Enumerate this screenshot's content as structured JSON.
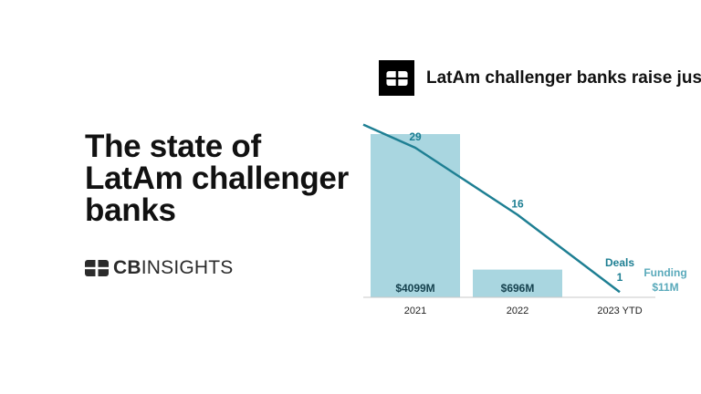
{
  "headline": {
    "lines": [
      "The state of",
      "LatAm challenger",
      "banks"
    ]
  },
  "brand": {
    "bold": "CB",
    "regular": "INSIGHTS",
    "icon": "cb-insights-logo-icon"
  },
  "chart_data": {
    "type": "bar+line",
    "title": "LatAm challenger banks raise just",
    "categories": [
      "2021",
      "2022",
      "2023 YTD"
    ],
    "series": [
      {
        "name": "Funding",
        "type": "bar",
        "color": "#a9d6e0",
        "values": [
          4099,
          696,
          11
        ],
        "labels": [
          "$4099M",
          "$696M",
          "$11M"
        ]
      },
      {
        "name": "Deals",
        "type": "line",
        "color": "#1e7f93",
        "values": [
          29,
          16,
          1
        ],
        "labels": [
          "29",
          "16",
          "1"
        ]
      }
    ],
    "legend": {
      "deals": "Deals",
      "funding": "Funding"
    },
    "funding_ylim": [
      0,
      4099
    ],
    "deals_ylim": [
      0,
      29
    ],
    "colors": {
      "bar": "#a9d6e0",
      "line": "#1e7f93",
      "funding_label": "#5aaabb",
      "bar_label": "#16424f"
    }
  }
}
